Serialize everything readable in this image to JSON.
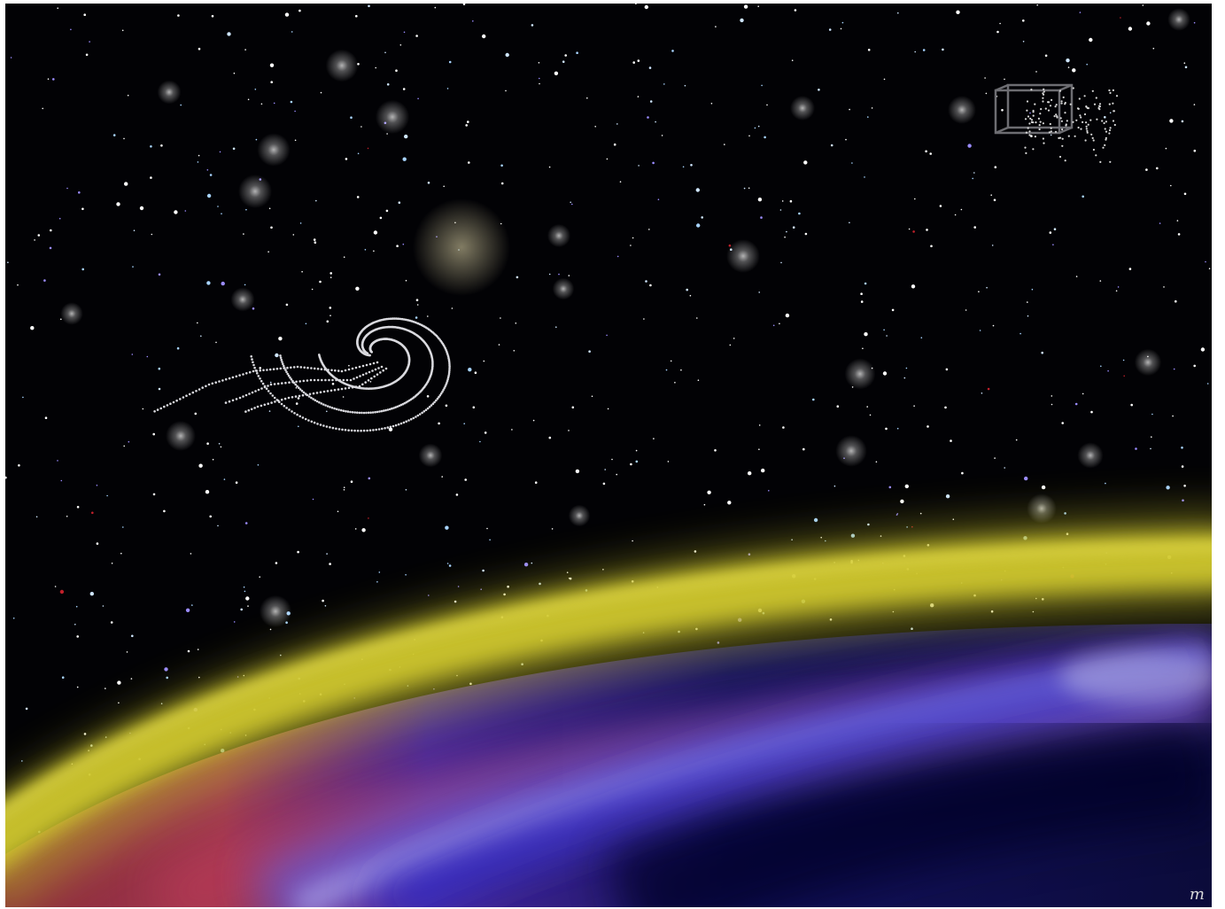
{
  "artwork": {
    "kind": "digital painting",
    "colors": {
      "sky": "#020205",
      "atmosphere_glow": "#c9c22e",
      "planet_deep": "#0a0a3e",
      "planet_blue": "#1d1ba8",
      "planet_violet": "#6a55c8",
      "planet_red": "#b4384e",
      "cloud_band": "#9a8fd8"
    },
    "icons": {
      "signature": "artist-signature-mark",
      "spiral": "dotted-spiral-galaxy",
      "cube": "wireframe-cube-star-cluster"
    },
    "signature_text": "m"
  }
}
